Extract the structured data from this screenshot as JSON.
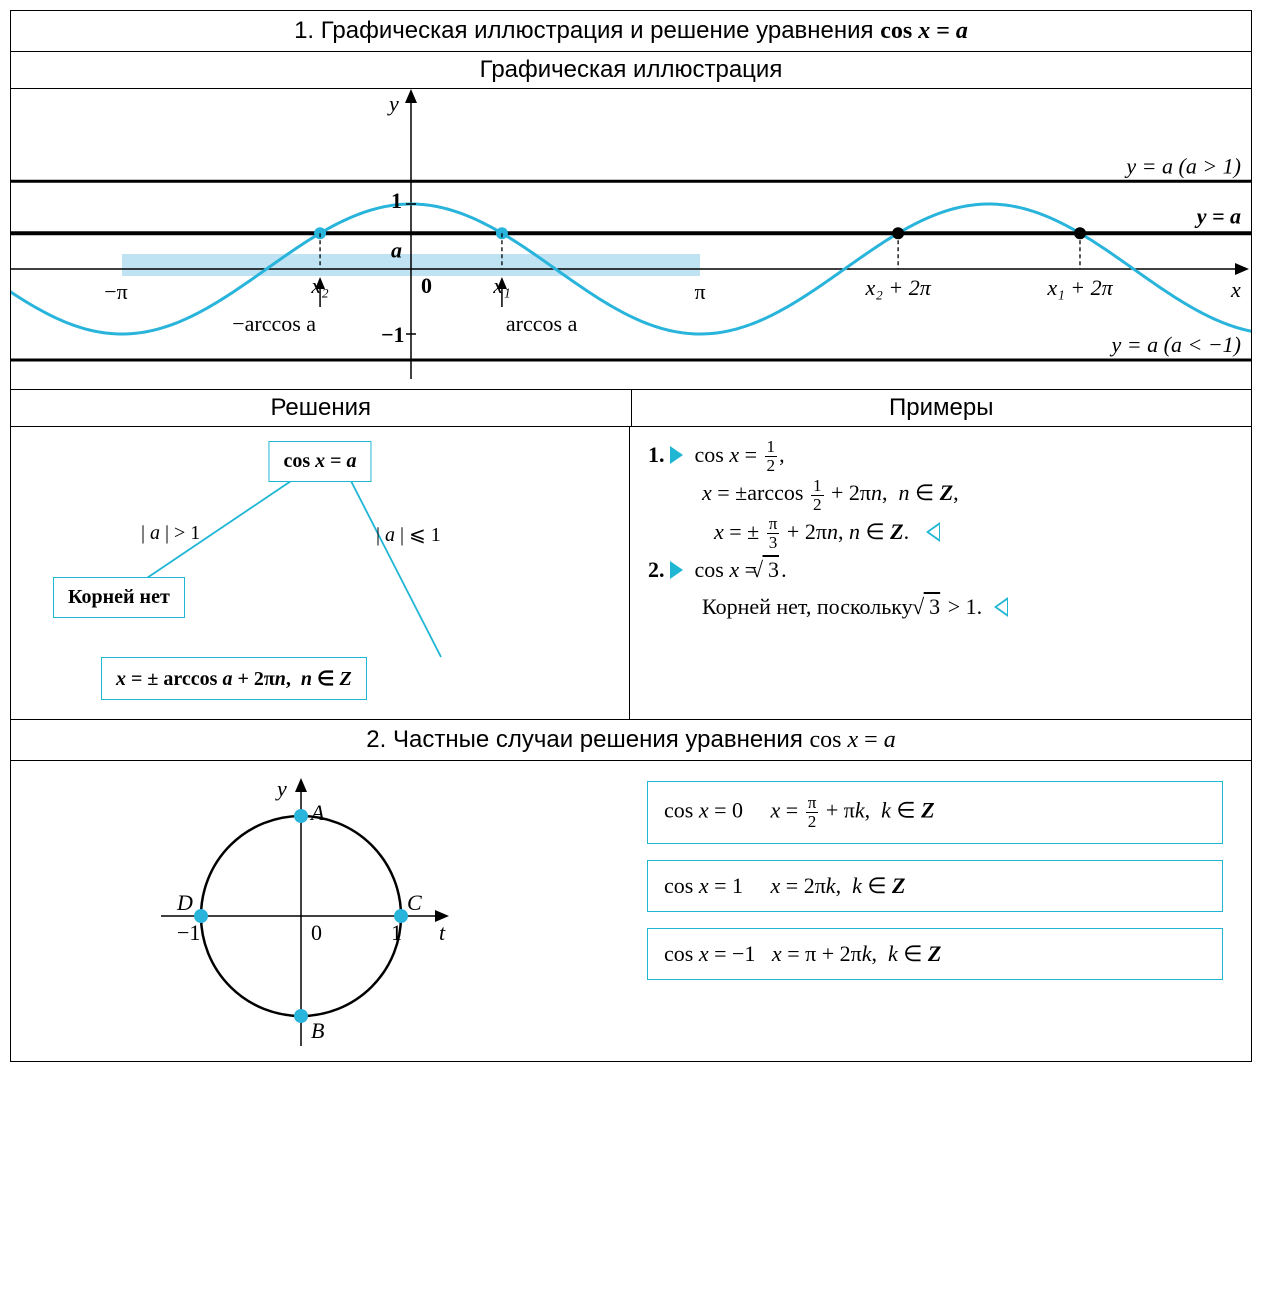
{
  "section1": {
    "title_pre": "1. Графическая иллюстрация и решение уравнения ",
    "title_eq": "cos x = a",
    "subtitle": "Графическая иллюстрация",
    "solutions_header": "Решения",
    "examples_header": "Примеры",
    "graph": {
      "type": "function-plot",
      "curve_color": "#29b4db",
      "axis_color": "#000000",
      "heavy_line_color": "#000000",
      "band_color": "#bfe3f3",
      "line_width_curve": 3,
      "line_width_a": 4,
      "line_width_horiz": 3,
      "x_range": [
        -4.4,
        9.2
      ],
      "x_axis_y": 180,
      "a_level": 0.55,
      "y_label": "y",
      "x_label": "x",
      "label_one": "1",
      "label_minus_one": "−1",
      "label_zero": "0",
      "label_a": "a",
      "label_minus_pi": "−π",
      "label_pi": "π",
      "label_x1": "x₁",
      "label_x2": "x₂",
      "label_x2_2pi": "x₂ + 2π",
      "label_x1_2pi": "x₁ + 2π",
      "label_ya_gt": "y = a (a > 1)",
      "label_ya": "y = a",
      "label_ya_lt": "y = a (a < −1)",
      "label_arccos": "arccos a",
      "label_m_arccos": "−arccos a"
    },
    "tree": {
      "root": "cos x = a",
      "left_cond": "| a | > 1",
      "right_cond": "| a | ⩽ 1",
      "left_leaf": "Корней нет",
      "right_leaf": "x = ± arccos a + 2πn,  n ∈ Z"
    },
    "examples": {
      "e1_n": "1.",
      "e1_line1a": "cos x = ",
      "e1_frac1": {
        "n": "1",
        "d": "2"
      },
      "e1_line1b": ",",
      "e1_line2a": "x = ±arccos ",
      "e1_line2b": " + 2πn,  n ∈ Z,",
      "e1_line3a": "x = ±",
      "e1_frac3": {
        "n": "π",
        "d": "3"
      },
      "e1_line3b": " + 2πn, n ∈ Z.",
      "e2_n": "2.",
      "e2_line1": "cos x = √3.",
      "e2_line2": "Корней нет, поскольку  √3 > 1."
    }
  },
  "section2": {
    "title_pre": "2. Частные случаи решения уравнения ",
    "title_eq": "cos x = a",
    "circle": {
      "type": "unit-circle",
      "axis_color": "#000000",
      "circle_color": "#000000",
      "point_color": "#29b4db",
      "line_width": 2.5,
      "y_label": "y",
      "t_label": "t",
      "zero": "0",
      "one": "1",
      "m_one": "−1",
      "A": "A",
      "B": "B",
      "C": "C",
      "D": "D"
    },
    "cases": {
      "box_color": "#1fb6d4",
      "c0_l": "cos x = 0",
      "c0_r_pre": "x = ",
      "c0_frac": {
        "n": "π",
        "d": "2"
      },
      "c0_r_post": " + πk,  k ∈ Z",
      "c1_l": "cos x = 1",
      "c1_r": "x = 2πk,  k ∈ Z",
      "cm1_l": "cos x = −1",
      "cm1_r": "x = π + 2πk,  k ∈ Z"
    }
  }
}
